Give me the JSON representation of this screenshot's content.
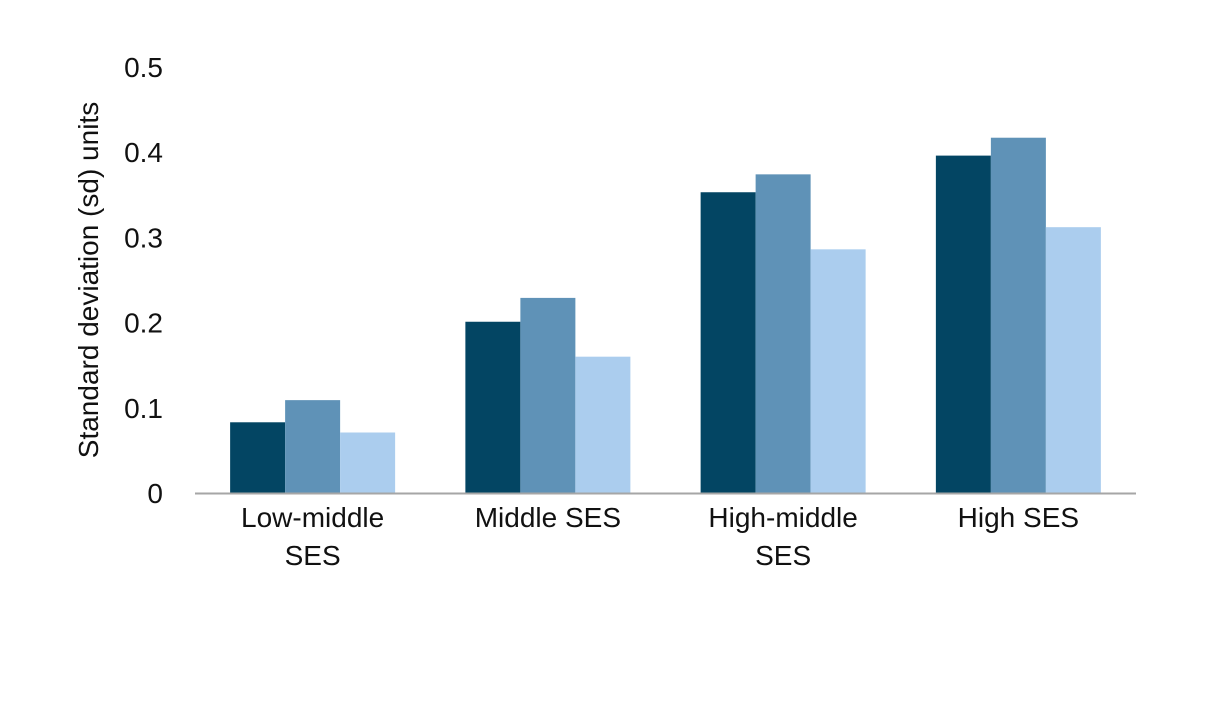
{
  "chart_data": {
    "type": "bar",
    "title": "",
    "xlabel": "",
    "ylabel": "Standard deviation (sd) units",
    "ylim": [
      0,
      0.5
    ],
    "yticks": [
      "0",
      "0.1",
      "0.2",
      "0.3",
      "0.4",
      "0.5"
    ],
    "ytick_values": [
      0,
      0.1,
      0.2,
      0.3,
      0.4,
      0.5
    ],
    "categories": [
      [
        "Low-middle",
        "SES"
      ],
      [
        "Middle SES"
      ],
      [
        "High-middle",
        "SES"
      ],
      [
        "High SES"
      ]
    ],
    "series": [
      {
        "color": "#034563",
        "values": [
          0.083,
          0.201,
          0.353,
          0.396
        ]
      },
      {
        "color": "#5f92b7",
        "values": [
          0.109,
          0.229,
          0.374,
          0.417
        ]
      },
      {
        "color": "#abcdee",
        "values": [
          0.071,
          0.16,
          0.286,
          0.312
        ]
      }
    ],
    "grid": false,
    "legend": "none",
    "axis_color": "#a6a6a6"
  }
}
